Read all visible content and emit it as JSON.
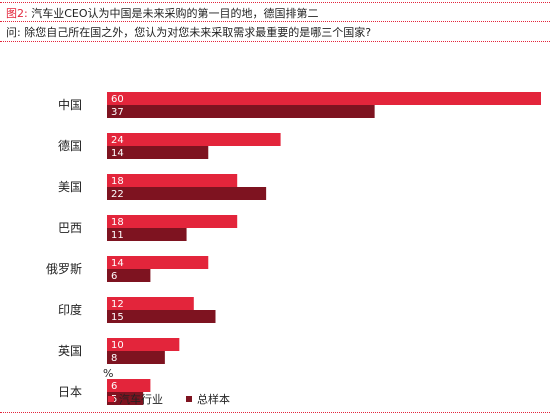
{
  "header": {
    "figure_label": "图2:",
    "title": "汽车业CEO认为中国是未来采购的第一目的地，德国排第二",
    "question": "问: 除您自己所在国之外，您认为对您未来采取需求最重要的是哪三个国家?"
  },
  "colors": {
    "auto": "#e3253b",
    "total": "#7e1320",
    "label_text": "#ffffff",
    "axis_text": "#222222"
  },
  "chart_data": {
    "type": "bar",
    "orientation": "horizontal",
    "title": "汽车业CEO认为中国是未来采购的第一目的地，德国排第二",
    "categories": [
      "中国",
      "德国",
      "美国",
      "巴西",
      "俄罗斯",
      "印度",
      "英国",
      "日本"
    ],
    "series": [
      {
        "name": "汽车行业",
        "values": [
          60,
          24,
          18,
          18,
          14,
          12,
          10,
          6
        ]
      },
      {
        "name": "总样本",
        "values": [
          37,
          14,
          22,
          11,
          6,
          15,
          8,
          5
        ]
      }
    ],
    "unit": "%",
    "xlim": [
      0,
      60
    ],
    "grid": false,
    "legend_position": "bottom-left"
  }
}
